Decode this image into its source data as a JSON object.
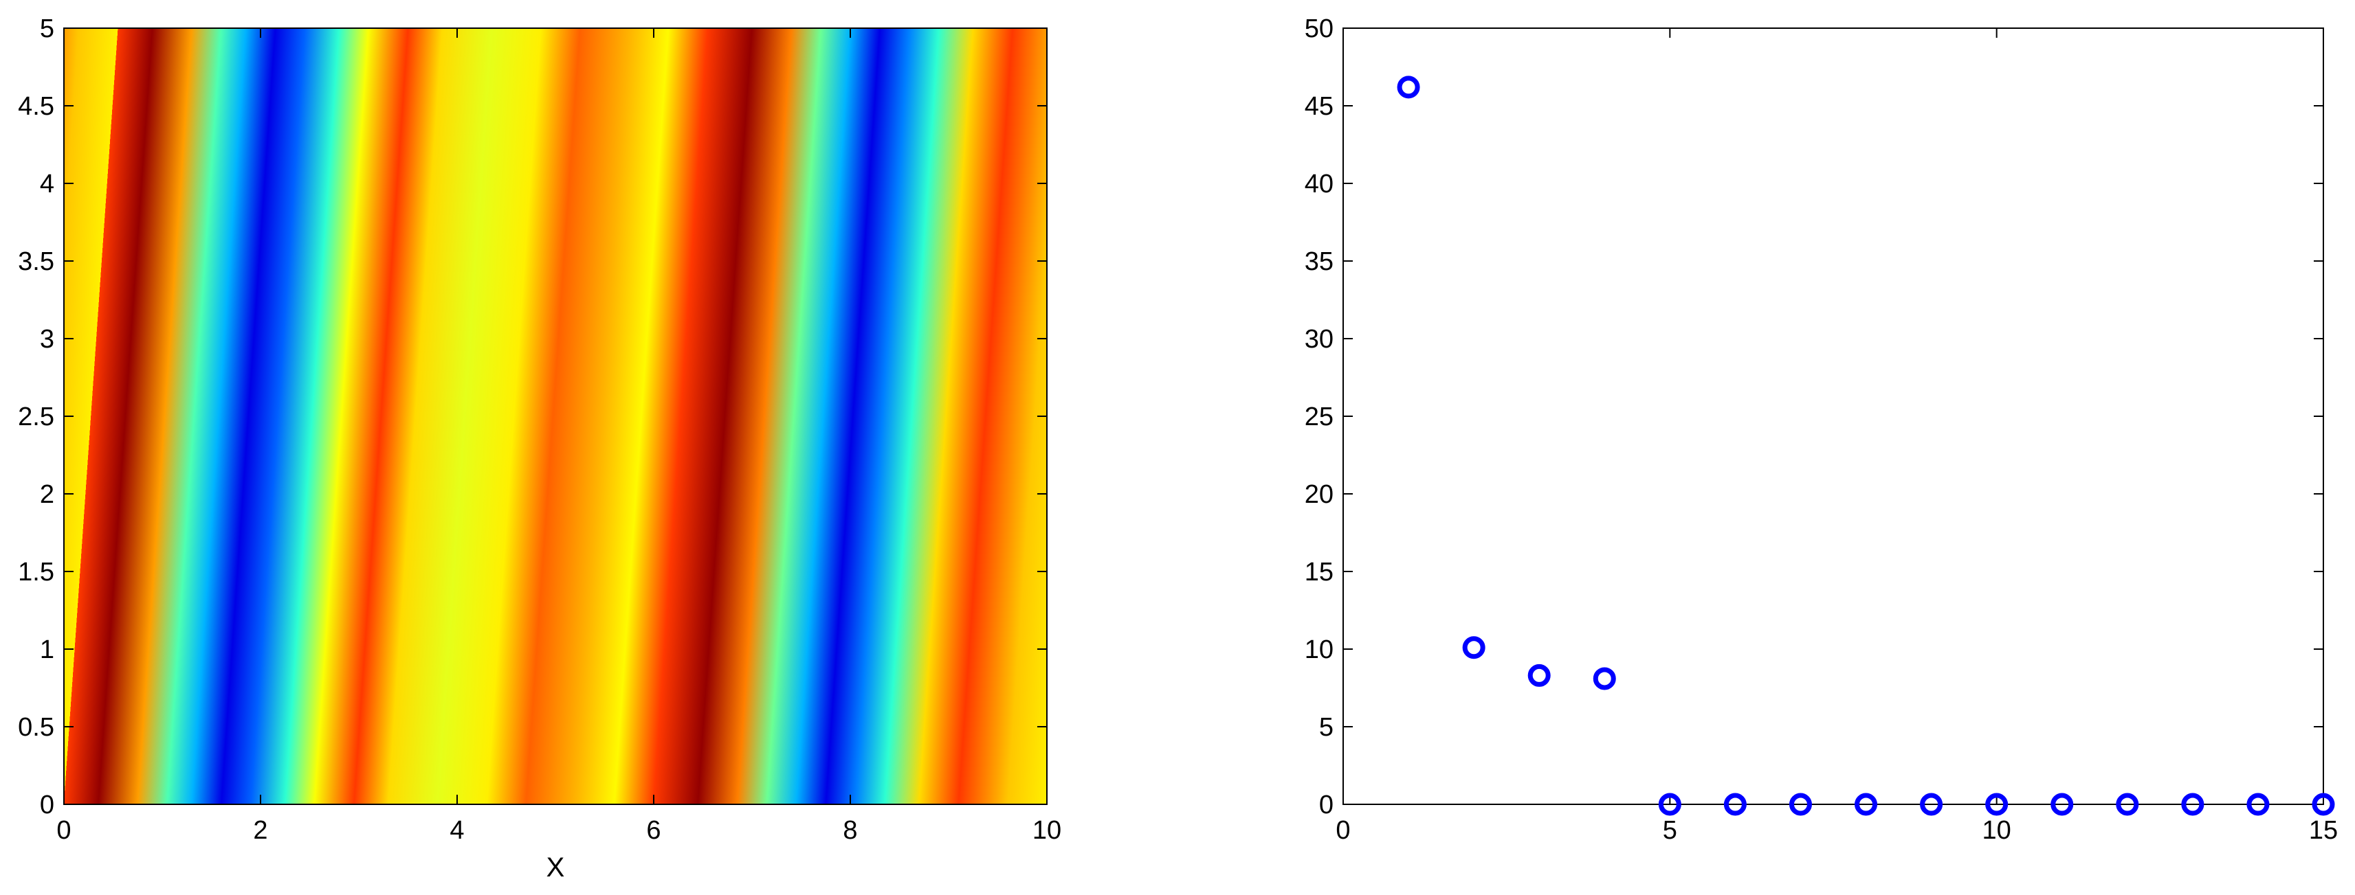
{
  "chart_data": [
    {
      "type": "heatmap",
      "title": "",
      "xlabel": "X",
      "ylabel": "",
      "xlim": [
        0,
        10
      ],
      "ylim": [
        0,
        5
      ],
      "xticks": [
        "0",
        "2",
        "4",
        "6",
        "8",
        "10"
      ],
      "yticks": [
        "0",
        "0.5",
        "1",
        "1.5",
        "2",
        "2.5",
        "3",
        "3.5",
        "4",
        "4.5",
        "5"
      ],
      "colormap": "jet",
      "field": {
        "description_of_pattern": "slanted periodic bands (two wave periods across x, tilted)",
        "x_profile": [
          {
            "x": 0.0,
            "level": 0.82
          },
          {
            "x": 0.35,
            "level": 0.98
          },
          {
            "x": 0.75,
            "level": 0.72
          },
          {
            "x": 1.05,
            "level": 0.45
          },
          {
            "x": 1.3,
            "level": 0.3
          },
          {
            "x": 1.6,
            "level": 0.1
          },
          {
            "x": 1.9,
            "level": 0.22
          },
          {
            "x": 2.25,
            "level": 0.42
          },
          {
            "x": 2.55,
            "level": 0.62
          },
          {
            "x": 2.95,
            "level": 0.82
          },
          {
            "x": 3.3,
            "level": 0.66
          },
          {
            "x": 3.8,
            "level": 0.6
          },
          {
            "x": 4.3,
            "level": 0.64
          },
          {
            "x": 4.7,
            "level": 0.78
          },
          {
            "x": 5.2,
            "level": 0.7
          },
          {
            "x": 5.6,
            "level": 0.63
          },
          {
            "x": 6.0,
            "level": 0.82
          },
          {
            "x": 6.45,
            "level": 0.98
          },
          {
            "x": 6.85,
            "level": 0.75
          },
          {
            "x": 7.15,
            "level": 0.48
          },
          {
            "x": 7.45,
            "level": 0.3
          },
          {
            "x": 7.75,
            "level": 0.1
          },
          {
            "x": 8.05,
            "level": 0.25
          },
          {
            "x": 8.35,
            "level": 0.42
          },
          {
            "x": 8.7,
            "level": 0.66
          },
          {
            "x": 9.1,
            "level": 0.82
          },
          {
            "x": 9.6,
            "level": 0.68
          },
          {
            "x": 10.0,
            "level": 0.64
          }
        ],
        "slant_x_per_y": 0.11
      }
    },
    {
      "type": "scatter",
      "title": "",
      "xlabel": "",
      "ylabel": "",
      "xlim": [
        0,
        15
      ],
      "ylim": [
        0,
        50
      ],
      "xticks": [
        "0",
        "5",
        "10",
        "15"
      ],
      "yticks": [
        "0",
        "5",
        "10",
        "15",
        "20",
        "25",
        "30",
        "35",
        "40",
        "45",
        "50"
      ],
      "marker": "circle-open",
      "color": "#0000ff",
      "x": [
        1,
        2,
        3,
        4,
        5,
        6,
        7,
        8,
        9,
        10,
        11,
        12,
        13,
        14,
        15
      ],
      "y": [
        46.2,
        10.1,
        8.3,
        8.1,
        0.0,
        0.0,
        0.0,
        0.0,
        0.0,
        0.0,
        0.0,
        0.0,
        0.0,
        0.0,
        0.0
      ]
    }
  ]
}
